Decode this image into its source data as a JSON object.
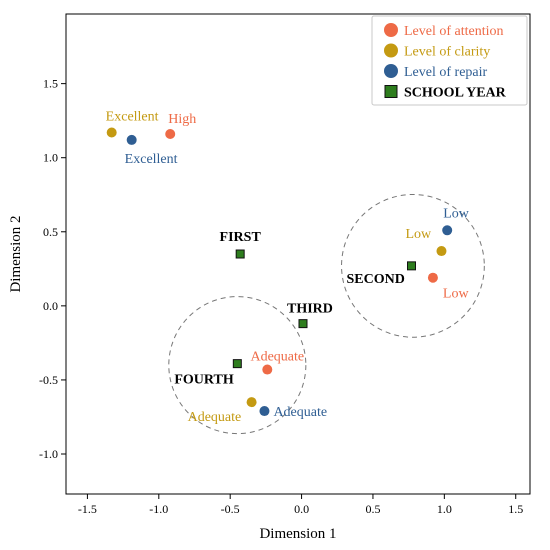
{
  "chart_data": {
    "type": "scatter",
    "xlabel": "Dimension 1",
    "ylabel": "Dimension 2",
    "xlim": [
      -1.65,
      1.6
    ],
    "ylim": [
      -1.27,
      1.97
    ],
    "xticks": [
      -1.5,
      -1.0,
      -0.5,
      0.0,
      0.5,
      1.0,
      1.5
    ],
    "yticks": [
      -1.0,
      -0.5,
      0.0,
      0.5,
      1.0,
      1.5
    ],
    "xtick_labels": [
      "-1.5",
      "-1.0",
      "-0.5",
      "0.0",
      "0.5",
      "1.0",
      "1.5"
    ],
    "ytick_labels": [
      "-1.0",
      "-0.5",
      "0.0",
      "0.5",
      "1.0",
      "1.5"
    ],
    "grid": false,
    "legend_position": "top-right",
    "series": [
      {
        "name": "Level of attention",
        "color": "#EE6A46",
        "marker": "circle",
        "points": [
          {
            "x": -0.92,
            "y": 1.16,
            "label": "High"
          },
          {
            "x": 0.92,
            "y": 0.19,
            "label": "Low"
          },
          {
            "x": -0.24,
            "y": -0.43,
            "label": "Adequate"
          }
        ]
      },
      {
        "name": "Level of clarity",
        "color": "#C49A12",
        "marker": "circle",
        "points": [
          {
            "x": -1.33,
            "y": 1.17,
            "label": "Excellent"
          },
          {
            "x": 0.98,
            "y": 0.37,
            "label": "Low"
          },
          {
            "x": -0.35,
            "y": -0.65,
            "label": "Adequate"
          }
        ]
      },
      {
        "name": "Level of repair",
        "color": "#2F5E93",
        "marker": "circle",
        "points": [
          {
            "x": -1.19,
            "y": 1.12,
            "label": "Excellent"
          },
          {
            "x": 1.02,
            "y": 0.51,
            "label": "Low"
          },
          {
            "x": -0.26,
            "y": -0.71,
            "label": "Adequate"
          }
        ]
      },
      {
        "name": "SCHOOL YEAR",
        "color": "#2E7D1E",
        "marker": "square",
        "points": [
          {
            "x": -0.43,
            "y": 0.35,
            "label": "FIRST"
          },
          {
            "x": 0.77,
            "y": 0.27,
            "label": "SECOND"
          },
          {
            "x": 0.01,
            "y": -0.12,
            "label": "THIRD"
          },
          {
            "x": -0.45,
            "y": -0.39,
            "label": "FOURTH"
          }
        ]
      }
    ],
    "circles": [
      {
        "name": "cluster-low",
        "cx": 0.78,
        "cy": 0.27,
        "r": 0.5
      },
      {
        "name": "cluster-adequate",
        "cx": -0.45,
        "cy": -0.4,
        "r": 0.48
      }
    ]
  }
}
